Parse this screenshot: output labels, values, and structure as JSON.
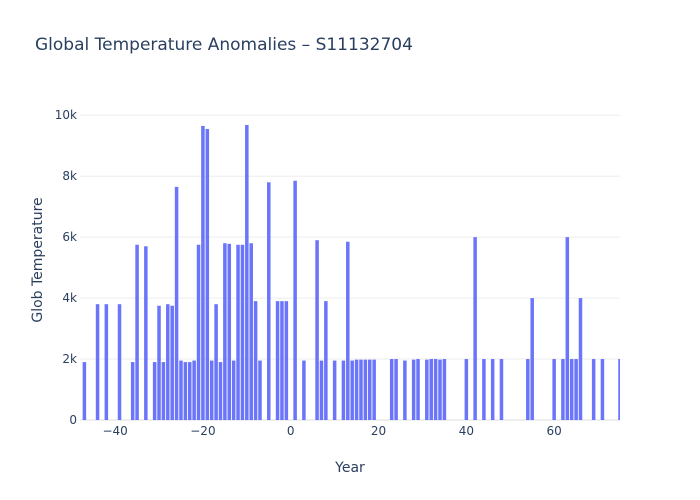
{
  "chart_data": {
    "type": "bar",
    "title": "Global Temperature Anomalies – S11132704",
    "xlabel": "Year",
    "ylabel": "Glob  Temperature",
    "xlim": [
      -48,
      75
    ],
    "ylim": [
      0,
      10500
    ],
    "x_ticks": [
      -40,
      -20,
      0,
      20,
      40,
      60
    ],
    "y_ticks": [
      0,
      2000,
      4000,
      6000,
      8000,
      10000
    ],
    "x_tick_labels": [
      "−40",
      "−20",
      "0",
      "20",
      "40",
      "60"
    ],
    "y_tick_labels": [
      "0",
      "2k",
      "4k",
      "6k",
      "8k",
      "10k"
    ],
    "bar_color": "#636efa",
    "grid": true,
    "x": [
      -47,
      -44,
      -42,
      -39,
      -36,
      -35,
      -33,
      -31,
      -30,
      -29,
      -28,
      -27,
      -26,
      -25,
      -24,
      -23,
      -22,
      -21,
      -20,
      -19,
      -18,
      -17,
      -16,
      -15,
      -14,
      -13,
      -12,
      -11,
      -10,
      -9,
      -8,
      -7,
      -5,
      -3,
      -2,
      -1,
      1,
      3,
      6,
      7,
      8,
      10,
      12,
      13,
      14,
      15,
      16,
      17,
      18,
      19,
      23,
      24,
      26,
      28,
      29,
      31,
      32,
      33,
      34,
      35,
      40,
      42,
      44,
      46,
      48,
      54,
      55,
      60,
      62,
      63,
      64,
      65,
      66,
      69,
      71,
      75
    ],
    "values": [
      1900,
      3800,
      3800,
      3800,
      1900,
      5750,
      5700,
      1900,
      3750,
      1900,
      3800,
      3750,
      7650,
      1950,
      1900,
      1900,
      1950,
      5750,
      9650,
      9550,
      1950,
      3800,
      1900,
      5800,
      5780,
      1950,
      5750,
      5750,
      9680,
      5800,
      3900,
      1950,
      7800,
      3900,
      3900,
      3900,
      7850,
      1950,
      5900,
      1950,
      3900,
      1950,
      1950,
      5850,
      1950,
      1980,
      1980,
      1980,
      1980,
      1980,
      2000,
      2000,
      1950,
      1980,
      2000,
      1980,
      2000,
      2000,
      1980,
      2000,
      2000,
      6000,
      2000,
      2000,
      2000,
      2000,
      4000,
      2000,
      2000,
      6000,
      2000,
      2000,
      4000,
      2000,
      2000,
      2000
    ]
  }
}
